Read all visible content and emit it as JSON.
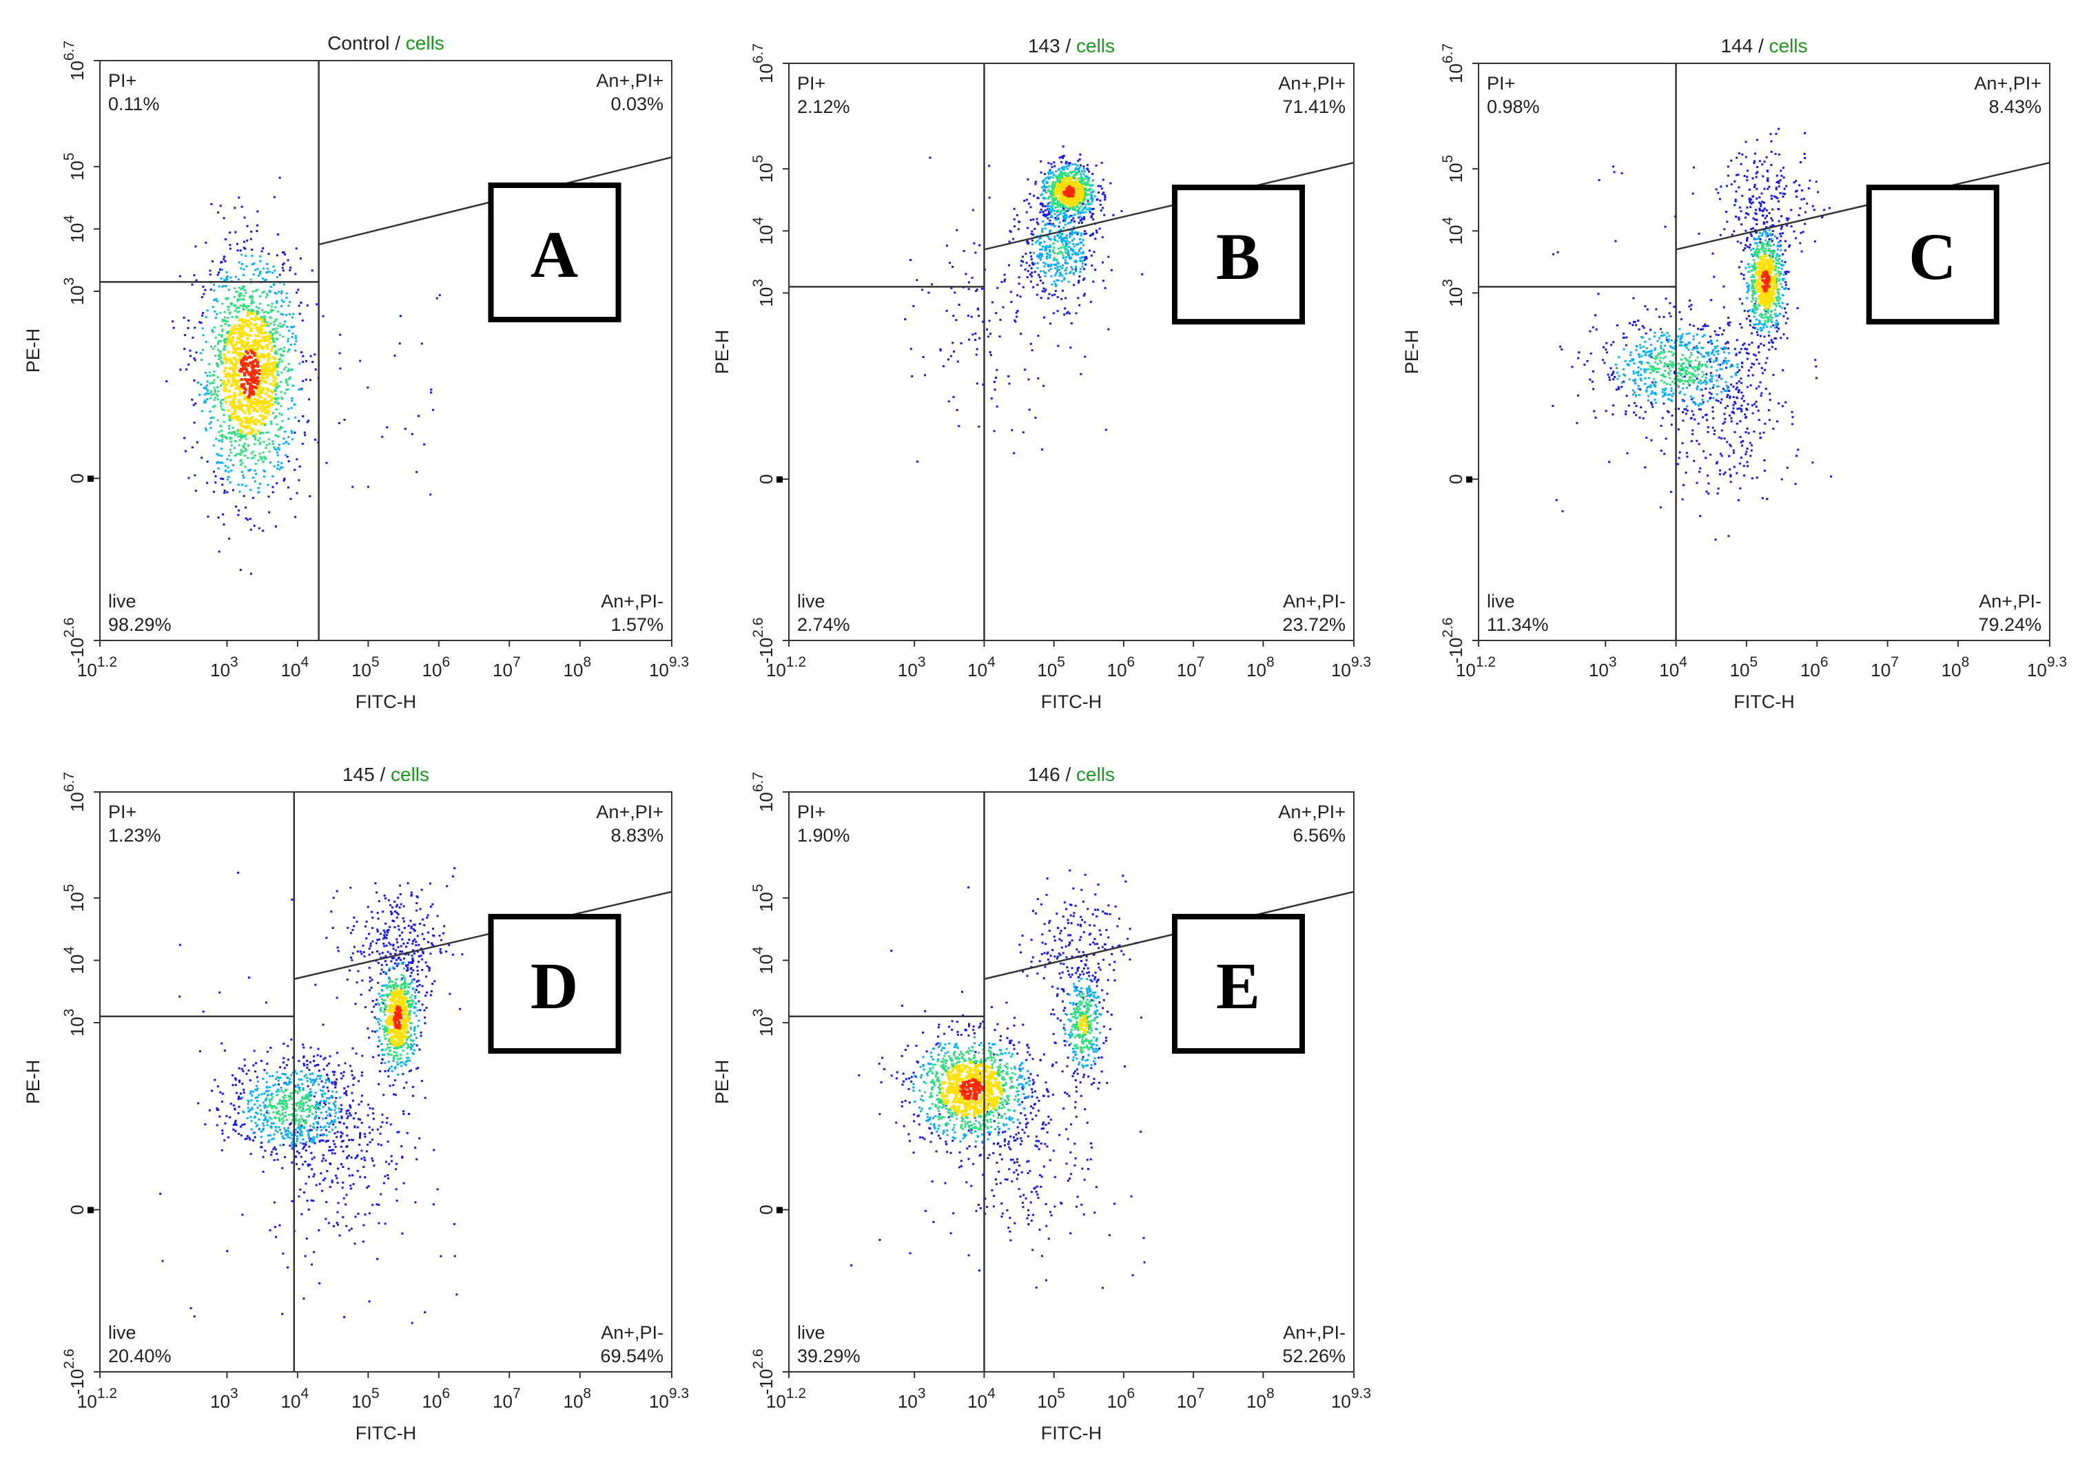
{
  "colors": {
    "axis": "#333333",
    "gate": "#333333",
    "title_accent": "#1a9a1a",
    "density_low": "#1414ff",
    "density_mid": "#00b0ff",
    "density_mid2": "#28e07a",
    "density_high": "#ffe000",
    "density_max": "#ff2a00"
  },
  "chart_data": [
    {
      "type": "scatter",
      "panel_letter": "A",
      "title": {
        "sample": "Control",
        "separator": " / ",
        "gate": "cells"
      },
      "xlabel": "FITC-H",
      "ylabel": "PE-H",
      "x_ticks": [
        {
          "base": "10",
          "exp": "1.2",
          "value": 1.2
        },
        {
          "base": "10",
          "exp": "3",
          "value": 3
        },
        {
          "base": "10",
          "exp": "4",
          "value": 4
        },
        {
          "base": "10",
          "exp": "5",
          "value": 5
        },
        {
          "base": "10",
          "exp": "6",
          "value": 6
        },
        {
          "base": "10",
          "exp": "7",
          "value": 7
        },
        {
          "base": "10",
          "exp": "8",
          "value": 8
        },
        {
          "base": "10",
          "exp": "9.3",
          "value": 9.3
        }
      ],
      "y_ticks": [
        {
          "label": "-10",
          "exp": "2.6",
          "value": -2.6
        },
        {
          "label": "0",
          "exp": "",
          "value": 0
        },
        {
          "label": "10",
          "exp": "3",
          "value": 3
        },
        {
          "label": "10",
          "exp": "4",
          "value": 4
        },
        {
          "label": "10",
          "exp": "5",
          "value": 5
        },
        {
          "label": "10",
          "exp": "6.7",
          "value": 6.7
        }
      ],
      "x_range": [
        1.2,
        9.3
      ],
      "y_range": [
        -2.6,
        6.7
      ],
      "gate": {
        "x_split": 4.3,
        "y_split_left": 3.15,
        "y_upper_at_split": 3.75,
        "y_upper_at_right": 5.15
      },
      "quadrants": {
        "upper_left": {
          "name": "PI+",
          "percent": "0.11%"
        },
        "upper_right": {
          "name": "An+,PI+",
          "percent": "0.03%"
        },
        "lower_left": {
          "name": "live",
          "percent": "98.29%"
        },
        "lower_right": {
          "name": "An+,PI-",
          "percent": "1.57%"
        }
      },
      "populations": [
        {
          "cx": 3.3,
          "cy": 1.7,
          "sx": 0.36,
          "sy": 0.95,
          "n": 1500,
          "core": 1.0
        }
      ],
      "scatter_extra": [
        {
          "x1": 4.3,
          "x2": 6.0,
          "y1": -0.3,
          "y2": 3.5,
          "n": 25
        }
      ]
    },
    {
      "type": "scatter",
      "panel_letter": "B",
      "title": {
        "sample": "143",
        "separator": " / ",
        "gate": "cells"
      },
      "xlabel": "FITC-H",
      "ylabel": "PE-H",
      "x_ticks": [
        {
          "base": "10",
          "exp": "1.2",
          "value": 1.2
        },
        {
          "base": "10",
          "exp": "3",
          "value": 3
        },
        {
          "base": "10",
          "exp": "4",
          "value": 4
        },
        {
          "base": "10",
          "exp": "5",
          "value": 5
        },
        {
          "base": "10",
          "exp": "6",
          "value": 6
        },
        {
          "base": "10",
          "exp": "7",
          "value": 7
        },
        {
          "base": "10",
          "exp": "8",
          "value": 8
        },
        {
          "base": "10",
          "exp": "9.3",
          "value": 9.3
        }
      ],
      "y_ticks": [
        {
          "label": "-10",
          "exp": "2.6",
          "value": -2.6
        },
        {
          "label": "0",
          "exp": "",
          "value": 0
        },
        {
          "label": "10",
          "exp": "3",
          "value": 3
        },
        {
          "label": "10",
          "exp": "4",
          "value": 4
        },
        {
          "label": "10",
          "exp": "5",
          "value": 5
        },
        {
          "label": "10",
          "exp": "6.7",
          "value": 6.7
        }
      ],
      "x_range": [
        1.2,
        9.3
      ],
      "y_range": [
        -2.6,
        6.7
      ],
      "gate": {
        "x_split": 4.0,
        "y_split_left": 3.1,
        "y_upper_at_split": 3.7,
        "y_upper_at_right": 5.1
      },
      "quadrants": {
        "upper_left": {
          "name": "PI+",
          "percent": "2.12%"
        },
        "upper_right": {
          "name": "An+,PI+",
          "percent": "71.41%"
        },
        "lower_left": {
          "name": "live",
          "percent": "2.74%"
        },
        "lower_right": {
          "name": "An+,PI-",
          "percent": "23.72%"
        }
      },
      "populations": [
        {
          "cx": 5.2,
          "cy": 4.65,
          "sx": 0.2,
          "sy": 0.22,
          "n": 700,
          "core": 1.0
        },
        {
          "cx": 5.05,
          "cy": 3.7,
          "sx": 0.28,
          "sy": 0.42,
          "n": 450,
          "core": 0.45
        },
        {
          "cx": 4.1,
          "cy": 2.5,
          "sx": 0.55,
          "sy": 0.75,
          "n": 110,
          "core": 0.15
        }
      ],
      "scatter_extra": [
        {
          "x1": 2.5,
          "x2": 6.0,
          "y1": 0.2,
          "y2": 5.4,
          "n": 30
        }
      ]
    },
    {
      "type": "scatter",
      "panel_letter": "C",
      "title": {
        "sample": "144",
        "separator": " / ",
        "gate": "cells"
      },
      "xlabel": "FITC-H",
      "ylabel": "PE-H",
      "x_ticks": [
        {
          "base": "10",
          "exp": "1.2",
          "value": 1.2
        },
        {
          "base": "10",
          "exp": "3",
          "value": 3
        },
        {
          "base": "10",
          "exp": "4",
          "value": 4
        },
        {
          "base": "10",
          "exp": "5",
          "value": 5
        },
        {
          "base": "10",
          "exp": "6",
          "value": 6
        },
        {
          "base": "10",
          "exp": "7",
          "value": 7
        },
        {
          "base": "10",
          "exp": "8",
          "value": 8
        },
        {
          "base": "10",
          "exp": "9.3",
          "value": 9.3
        }
      ],
      "y_ticks": [
        {
          "label": "-10",
          "exp": "2.6",
          "value": -2.6
        },
        {
          "label": "0",
          "exp": "",
          "value": 0
        },
        {
          "label": "10",
          "exp": "3",
          "value": 3
        },
        {
          "label": "10",
          "exp": "4",
          "value": 4
        },
        {
          "label": "10",
          "exp": "5",
          "value": 5
        },
        {
          "label": "10",
          "exp": "6.7",
          "value": 6.7
        }
      ],
      "x_range": [
        1.2,
        9.3
      ],
      "y_range": [
        -2.6,
        6.7
      ],
      "gate": {
        "x_split": 4.0,
        "y_split_left": 3.1,
        "y_upper_at_split": 3.7,
        "y_upper_at_right": 5.1
      },
      "quadrants": {
        "upper_left": {
          "name": "PI+",
          "percent": "0.98%"
        },
        "upper_right": {
          "name": "An+,PI+",
          "percent": "8.43%"
        },
        "lower_left": {
          "name": "live",
          "percent": "11.34%"
        },
        "lower_right": {
          "name": "An+,PI-",
          "percent": "79.24%"
        }
      },
      "populations": [
        {
          "cx": 5.25,
          "cy": 3.2,
          "sx": 0.14,
          "sy": 0.42,
          "n": 650,
          "core": 1.0
        },
        {
          "cx": 4.0,
          "cy": 1.8,
          "sx": 0.55,
          "sy": 0.4,
          "n": 650,
          "core": 0.55
        },
        {
          "cx": 5.3,
          "cy": 4.5,
          "sx": 0.35,
          "sy": 0.45,
          "n": 220,
          "core": 0.2
        },
        {
          "cx": 4.7,
          "cy": 1.1,
          "sx": 0.45,
          "sy": 0.7,
          "n": 250,
          "core": 0.2
        }
      ],
      "scatter_extra": [
        {
          "x1": 2.2,
          "x2": 6.2,
          "y1": -0.6,
          "y2": 5.2,
          "n": 40
        }
      ]
    },
    {
      "type": "scatter",
      "panel_letter": "D",
      "title": {
        "sample": "145",
        "separator": " / ",
        "gate": "cells"
      },
      "xlabel": "FITC-H",
      "ylabel": "PE-H",
      "x_ticks": [
        {
          "base": "10",
          "exp": "1.2",
          "value": 1.2
        },
        {
          "base": "10",
          "exp": "3",
          "value": 3
        },
        {
          "base": "10",
          "exp": "4",
          "value": 4
        },
        {
          "base": "10",
          "exp": "5",
          "value": 5
        },
        {
          "base": "10",
          "exp": "6",
          "value": 6
        },
        {
          "base": "10",
          "exp": "7",
          "value": 7
        },
        {
          "base": "10",
          "exp": "8",
          "value": 8
        },
        {
          "base": "10",
          "exp": "9.3",
          "value": 9.3
        }
      ],
      "y_ticks": [
        {
          "label": "-10",
          "exp": "2.6",
          "value": -2.6
        },
        {
          "label": "0",
          "exp": "",
          "value": 0
        },
        {
          "label": "10",
          "exp": "3",
          "value": 3
        },
        {
          "label": "10",
          "exp": "4",
          "value": 4
        },
        {
          "label": "10",
          "exp": "5",
          "value": 5
        },
        {
          "label": "10",
          "exp": "6.7",
          "value": 6.7
        }
      ],
      "x_range": [
        1.2,
        9.3
      ],
      "y_range": [
        -2.6,
        6.7
      ],
      "gate": {
        "x_split": 3.95,
        "y_split_left": 3.1,
        "y_upper_at_split": 3.7,
        "y_upper_at_right": 5.1
      },
      "quadrants": {
        "upper_left": {
          "name": "PI+",
          "percent": "1.23%"
        },
        "upper_right": {
          "name": "An+,PI+",
          "percent": "8.83%"
        },
        "lower_left": {
          "name": "live",
          "percent": "20.40%"
        },
        "lower_right": {
          "name": "An+,PI-",
          "percent": "69.54%"
        }
      },
      "populations": [
        {
          "cx": 5.4,
          "cy": 3.1,
          "sx": 0.15,
          "sy": 0.45,
          "n": 600,
          "core": 1.0
        },
        {
          "cx": 3.9,
          "cy": 1.65,
          "sx": 0.45,
          "sy": 0.4,
          "n": 700,
          "core": 0.55
        },
        {
          "cx": 5.4,
          "cy": 4.3,
          "sx": 0.35,
          "sy": 0.45,
          "n": 250,
          "core": 0.2
        },
        {
          "cx": 4.6,
          "cy": 1.0,
          "sx": 0.5,
          "sy": 0.8,
          "n": 280,
          "core": 0.2
        }
      ],
      "scatter_extra": [
        {
          "x1": 2.0,
          "x2": 6.3,
          "y1": -1.8,
          "y2": 5.5,
          "n": 45
        }
      ]
    },
    {
      "type": "scatter",
      "panel_letter": "E",
      "title": {
        "sample": "146",
        "separator": " / ",
        "gate": "cells"
      },
      "xlabel": "FITC-H",
      "ylabel": "PE-H",
      "x_ticks": [
        {
          "base": "10",
          "exp": "1.2",
          "value": 1.2
        },
        {
          "base": "10",
          "exp": "3",
          "value": 3
        },
        {
          "base": "10",
          "exp": "4",
          "value": 4
        },
        {
          "base": "10",
          "exp": "5",
          "value": 5
        },
        {
          "base": "10",
          "exp": "6",
          "value": 6
        },
        {
          "base": "10",
          "exp": "7",
          "value": 7
        },
        {
          "base": "10",
          "exp": "8",
          "value": 8
        },
        {
          "base": "10",
          "exp": "9.3",
          "value": 9.3
        }
      ],
      "y_ticks": [
        {
          "label": "-10",
          "exp": "2.6",
          "value": -2.6
        },
        {
          "label": "0",
          "exp": "",
          "value": 0
        },
        {
          "label": "10",
          "exp": "3",
          "value": 3
        },
        {
          "label": "10",
          "exp": "4",
          "value": 4
        },
        {
          "label": "10",
          "exp": "5",
          "value": 5
        },
        {
          "label": "10",
          "exp": "6.7",
          "value": 6.7
        }
      ],
      "x_range": [
        1.2,
        9.3
      ],
      "y_range": [
        -2.6,
        6.7
      ],
      "gate": {
        "x_split": 4.0,
        "y_split_left": 3.1,
        "y_upper_at_split": 3.7,
        "y_upper_at_right": 5.1
      },
      "quadrants": {
        "upper_left": {
          "name": "PI+",
          "percent": "1.90%"
        },
        "upper_right": {
          "name": "An+,PI+",
          "percent": "6.56%"
        },
        "lower_left": {
          "name": "live",
          "percent": "39.29%"
        },
        "lower_right": {
          "name": "An+,PI-",
          "percent": "52.26%"
        }
      },
      "populations": [
        {
          "cx": 3.8,
          "cy": 1.95,
          "sx": 0.42,
          "sy": 0.42,
          "n": 1100,
          "core": 1.0
        },
        {
          "cx": 5.4,
          "cy": 3.0,
          "sx": 0.15,
          "sy": 0.42,
          "n": 350,
          "core": 0.7
        },
        {
          "cx": 5.3,
          "cy": 4.3,
          "sx": 0.35,
          "sy": 0.45,
          "n": 180,
          "core": 0.2
        },
        {
          "cx": 4.6,
          "cy": 1.0,
          "sx": 0.5,
          "sy": 0.8,
          "n": 220,
          "core": 0.2
        }
      ],
      "scatter_extra": [
        {
          "x1": 2.0,
          "x2": 6.3,
          "y1": -1.5,
          "y2": 5.3,
          "n": 40
        }
      ]
    }
  ]
}
